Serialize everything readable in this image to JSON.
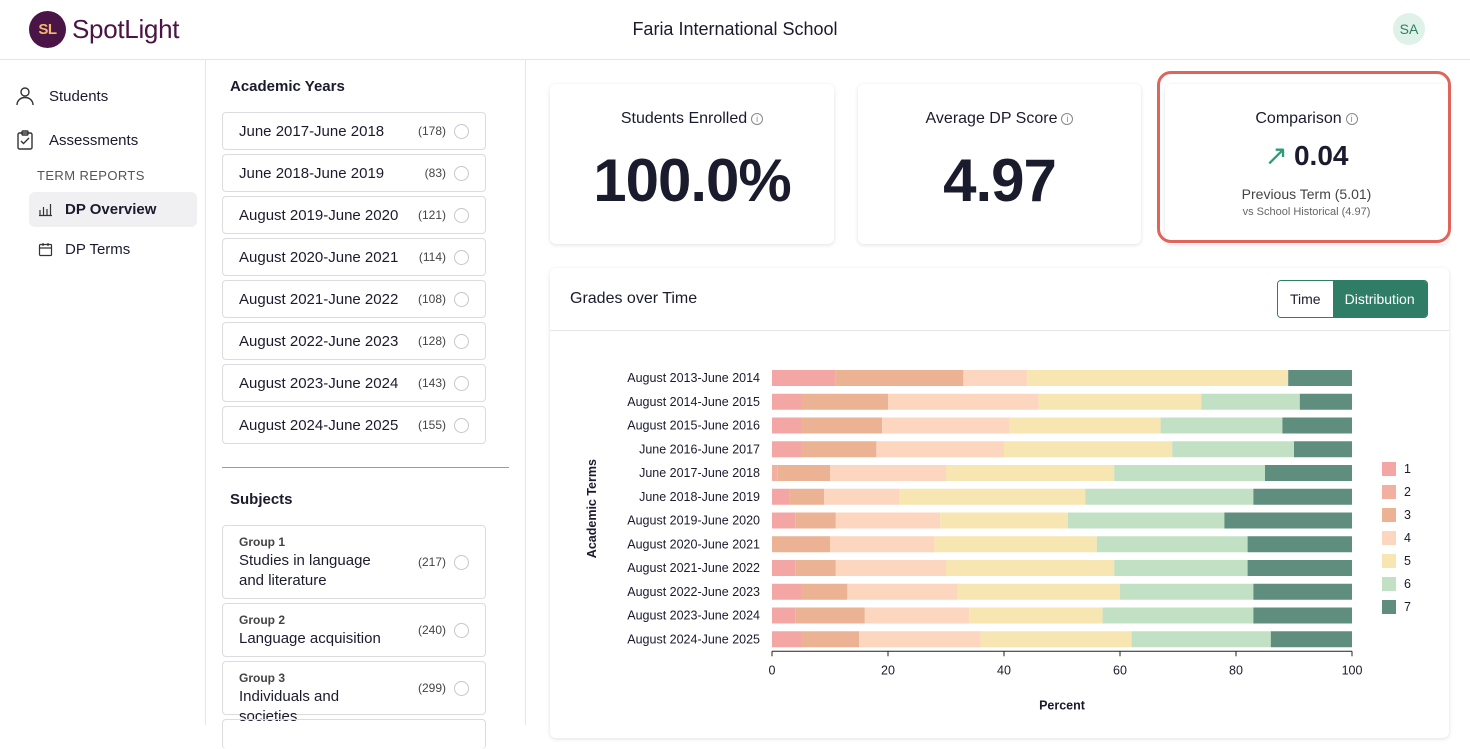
{
  "header": {
    "logo_mark": "SL",
    "logo_text": "SpotLight",
    "school": "Faria International School",
    "avatar": "SA"
  },
  "nav": {
    "students": "Students",
    "assessments": "Assessments",
    "section": "TERM REPORTS",
    "dp_overview": "DP Overview",
    "dp_terms": "DP Terms"
  },
  "filters": {
    "years_heading": "Academic Years",
    "years": [
      {
        "label": "June 2017-June 2018",
        "count": "(178)"
      },
      {
        "label": "June 2018-June 2019",
        "count": "(83)"
      },
      {
        "label": "August 2019-June 2020",
        "count": "(121)"
      },
      {
        "label": "August 2020-June 2021",
        "count": "(114)"
      },
      {
        "label": "August 2021-June 2022",
        "count": "(108)"
      },
      {
        "label": "August 2022-June 2023",
        "count": "(128)"
      },
      {
        "label": "August 2023-June 2024",
        "count": "(143)"
      },
      {
        "label": "August 2024-June 2025",
        "count": "(155)"
      }
    ],
    "subjects_heading": "Subjects",
    "subjects": [
      {
        "group": "Group 1",
        "name": "Studies in language and literature",
        "count": "(217)"
      },
      {
        "group": "Group 2",
        "name": "Language acquisition",
        "count": "(240)"
      },
      {
        "group": "Group 3",
        "name": "Individuals and societies",
        "count": "(299)"
      }
    ]
  },
  "cards": {
    "enrolled_title": "Students Enrolled",
    "enrolled_value": "100.0%",
    "avg_title": "Average DP Score",
    "avg_value": "4.97",
    "cmp_title": "Comparison",
    "cmp_value": "0.04",
    "cmp_prev": "Previous Term (5.01)",
    "cmp_hist": "vs School Historical (4.97)",
    "info_glyph": "i",
    "arrow_glyph": "↗"
  },
  "grades": {
    "title": "Grades over Time",
    "toggle_time": "Time",
    "toggle_dist": "Distribution"
  },
  "chart_data": {
    "type": "bar",
    "orientation": "horizontal",
    "stacked": true,
    "ylabel": "Academic Terms",
    "xlabel": "Percent",
    "xlim": [
      0,
      100
    ],
    "xticks": [
      0,
      20,
      40,
      60,
      80,
      100
    ],
    "categories": [
      "August 2013-June 2014",
      "August 2014-June 2015",
      "August 2015-June 2016",
      "June 2016-June 2017",
      "June 2017-June 2018",
      "June 2018-June 2019",
      "August 2019-June 2020",
      "August 2020-June 2021",
      "August 2021-June 2022",
      "August 2022-June 2023",
      "August 2023-June 2024",
      "August 2024-June 2025"
    ],
    "legend_position": "right",
    "series": [
      {
        "name": "1",
        "color": "#f4a6a4",
        "values": [
          11,
          5,
          5,
          5,
          0,
          3,
          4,
          0,
          4,
          5,
          4,
          5
        ]
      },
      {
        "name": "2",
        "color": "#f2b0a0",
        "values": [
          0,
          0,
          0,
          0,
          1,
          0,
          0,
          0,
          0,
          0,
          0,
          0
        ]
      },
      {
        "name": "3",
        "color": "#ebb293",
        "values": [
          22,
          15,
          14,
          13,
          9,
          6,
          7,
          10,
          7,
          8,
          12,
          10
        ]
      },
      {
        "name": "4",
        "color": "#fcd6bf",
        "values": [
          11,
          26,
          22,
          22,
          20,
          13,
          18,
          18,
          19,
          19,
          18,
          21
        ]
      },
      {
        "name": "5",
        "color": "#f7e6b2",
        "values": [
          45,
          28,
          26,
          29,
          29,
          32,
          22,
          28,
          29,
          28,
          23,
          26
        ]
      },
      {
        "name": "6",
        "color": "#c2e0c4",
        "values": [
          0,
          17,
          21,
          21,
          26,
          29,
          27,
          26,
          23,
          23,
          26,
          24
        ]
      },
      {
        "name": "7",
        "color": "#5f8e7e",
        "values": [
          11,
          9,
          12,
          10,
          15,
          17,
          22,
          18,
          18,
          17,
          17,
          14
        ]
      }
    ]
  }
}
